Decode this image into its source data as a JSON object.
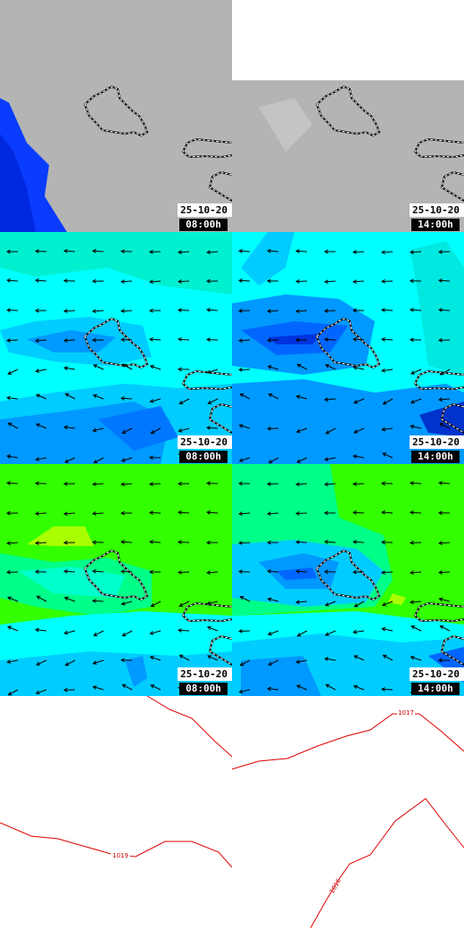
{
  "panels": [
    {
      "date": "25-10-20",
      "time": "08:00h"
    },
    {
      "date": "25-10-20",
      "time": "14:00h"
    },
    {
      "date": "25-10-20",
      "time": "08:00h"
    },
    {
      "date": "25-10-20",
      "time": "14:00h"
    },
    {
      "date": "25-10-20",
      "time": "08:00h"
    },
    {
      "date": "25-10-20",
      "time": "14:00h"
    }
  ],
  "isobars": [
    {
      "label": "1017"
    },
    {
      "label": "1019"
    },
    {
      "label": "1016"
    }
  ]
}
